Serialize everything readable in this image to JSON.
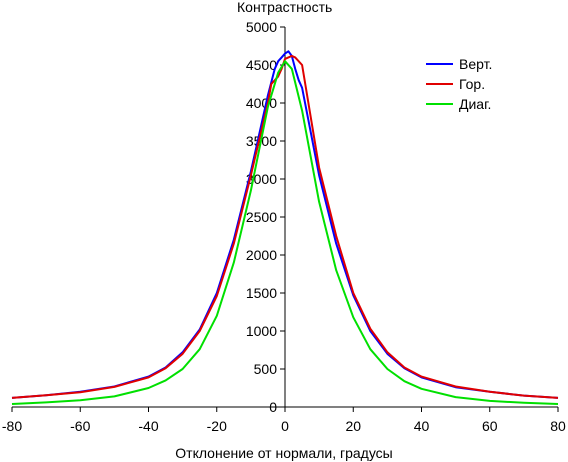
{
  "chart_data": {
    "type": "line",
    "title": "",
    "ylabel": "Контрастность",
    "xlabel": "Отклонение от нормали, градусы",
    "xlim": [
      -80,
      80
    ],
    "ylim": [
      0,
      5000
    ],
    "xticks": [
      -80,
      -60,
      -40,
      -20,
      0,
      20,
      40,
      60,
      80
    ],
    "yticks": [
      0,
      500,
      1000,
      1500,
      2000,
      2500,
      3000,
      3500,
      4000,
      4500,
      5000
    ],
    "grid": false,
    "legend_position": "top-right",
    "series": [
      {
        "name": "Верт.",
        "color": "#0000ff",
        "x": [
          -80,
          -70,
          -60,
          -50,
          -40,
          -35,
          -30,
          -25,
          -20,
          -15,
          -10,
          -5,
          -3,
          -2,
          -1,
          0,
          1,
          2,
          3,
          4,
          5,
          10,
          15,
          20,
          25,
          30,
          35,
          40,
          50,
          60,
          70,
          80
        ],
        "y": [
          120,
          155,
          200,
          270,
          400,
          520,
          720,
          1020,
          1500,
          2200,
          3100,
          4100,
          4450,
          4550,
          4600,
          4650,
          4680,
          4620,
          4450,
          4300,
          4200,
          3050,
          2150,
          1470,
          1000,
          700,
          510,
          390,
          260,
          200,
          150,
          120
        ]
      },
      {
        "name": "Гор.",
        "color": "#e00000",
        "x": [
          -80,
          -70,
          -60,
          -50,
          -40,
          -35,
          -30,
          -25,
          -20,
          -15,
          -10,
          -5,
          -4,
          -3,
          -2,
          -1,
          0,
          1,
          2,
          3,
          5,
          10,
          15,
          20,
          25,
          30,
          35,
          40,
          50,
          60,
          70,
          80
        ],
        "y": [
          120,
          155,
          195,
          265,
          390,
          510,
          700,
          1000,
          1460,
          2150,
          3050,
          4000,
          4250,
          4300,
          4350,
          4450,
          4580,
          4600,
          4620,
          4600,
          4500,
          3150,
          2250,
          1500,
          1030,
          720,
          520,
          400,
          270,
          200,
          150,
          120
        ]
      },
      {
        "name": "Диаг.",
        "color": "#00e000",
        "x": [
          -80,
          -70,
          -60,
          -50,
          -40,
          -35,
          -30,
          -25,
          -20,
          -15,
          -10,
          -5,
          -2,
          0,
          2,
          5,
          10,
          15,
          20,
          25,
          30,
          35,
          40,
          50,
          60,
          70,
          80
        ],
        "y": [
          40,
          60,
          90,
          140,
          250,
          350,
          500,
          760,
          1200,
          1900,
          2850,
          3950,
          4400,
          4550,
          4450,
          3900,
          2700,
          1800,
          1180,
          760,
          500,
          340,
          240,
          130,
          80,
          55,
          40
        ]
      }
    ]
  }
}
